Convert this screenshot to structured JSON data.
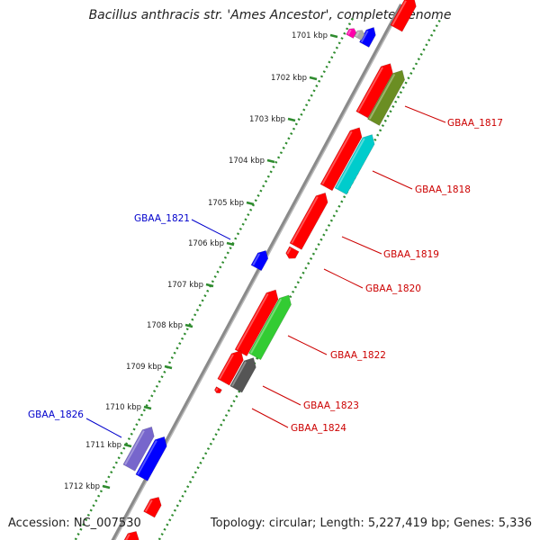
{
  "title": "Bacillus anthracis str. 'Ames Ancestor', complete genome",
  "accession": "Accession: NC_007530",
  "topology": "Topology: circular; Length: 5,227,419 bp; Genes: 5,336",
  "ticks": [
    "1701 kbp",
    "1702 kbp",
    "1703 kbp",
    "1704 kbp",
    "1705 kbp",
    "1706 kbp",
    "1707 kbp",
    "1708 kbp",
    "1709 kbp",
    "1710 kbp",
    "1711 kbp",
    "1712 kbp"
  ],
  "gene_labels": [
    {
      "text": "GBAA_1817",
      "color": "#cc0000"
    },
    {
      "text": "GBAA_1818",
      "color": "#cc0000"
    },
    {
      "text": "GBAA_1819",
      "color": "#cc0000"
    },
    {
      "text": "GBAA_1820",
      "color": "#cc0000"
    },
    {
      "text": "GBAA_1821",
      "color": "#0000cc"
    },
    {
      "text": "GBAA_1822",
      "color": "#cc0000"
    },
    {
      "text": "GBAA_1823",
      "color": "#cc0000"
    },
    {
      "text": "GBAA_1824",
      "color": "#cc0000"
    },
    {
      "text": "GBAA_1826",
      "color": "#0000cc"
    }
  ],
  "colors": {
    "backbone": "#8a8a8a",
    "dotted_track": "#2e8b2e",
    "forward_gene": "#ff0000",
    "reverse_gene": "#0000ff"
  }
}
